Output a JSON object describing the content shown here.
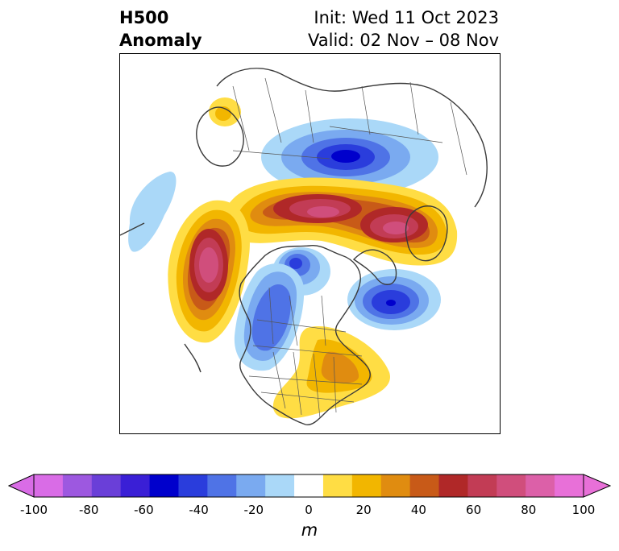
{
  "title": {
    "variable": "H500",
    "subtitle": "Anomaly",
    "init": "Init: Wed 11 Oct 2023",
    "valid": "Valid: 02 Nov – 08 Nov"
  },
  "map": {
    "projection": "north-polar-stereographic",
    "region": "North America and Arctic",
    "features": [
      "coastlines",
      "country-borders",
      "us-state-borders",
      "canada-province-borders"
    ]
  },
  "colorbar": {
    "unit": "m",
    "extend": "both",
    "levels": [
      -100,
      -90,
      -80,
      -70,
      -60,
      -50,
      -40,
      -30,
      -20,
      -10,
      10,
      20,
      30,
      40,
      50,
      60,
      70,
      80,
      90,
      100
    ],
    "colors": [
      "#d96ce6",
      "#9d58e0",
      "#6a3fd8",
      "#3a1fd6",
      "#0000cc",
      "#2a3ddc",
      "#4f73e6",
      "#7aaaf0",
      "#aad8f8",
      "#ffffff",
      "#ffdd44",
      "#f2b600",
      "#e08c10",
      "#c85a18",
      "#b02828",
      "#c23c55",
      "#d04e7c",
      "#dc60a8",
      "#e870d8"
    ],
    "tick_labels": [
      "-100",
      "-80",
      "-60",
      "-40",
      "-20",
      "0",
      "20",
      "40",
      "60",
      "80",
      "100"
    ],
    "ticks": [
      -100,
      -80,
      -60,
      -40,
      -20,
      0,
      20,
      40,
      60,
      80,
      100
    ]
  },
  "anomaly_centers": [
    {
      "sign": "negative",
      "level": -60,
      "location": "Siberian Arctic / Kara Sea"
    },
    {
      "sign": "positive",
      "level": 80,
      "location": "Gulf of Alaska / NE Pacific"
    },
    {
      "sign": "positive",
      "level": 70,
      "location": "Arctic Ocean north of Canada"
    },
    {
      "sign": "positive",
      "level": 70,
      "location": "Greenland / Nordic Seas"
    },
    {
      "sign": "negative",
      "level": -50,
      "location": "Canadian Arctic Archipelago"
    },
    {
      "sign": "negative",
      "level": -60,
      "location": "North Atlantic south of Iceland"
    },
    {
      "sign": "negative",
      "level": -40,
      "location": "Western Canada / Pacific Northwest"
    },
    {
      "sign": "positive",
      "level": 40,
      "location": "Eastern United States"
    },
    {
      "sign": "negative",
      "level": -20,
      "location": "Bering Sea / western Pacific"
    },
    {
      "sign": "positive",
      "level": 10,
      "location": "Western Europe"
    }
  ]
}
